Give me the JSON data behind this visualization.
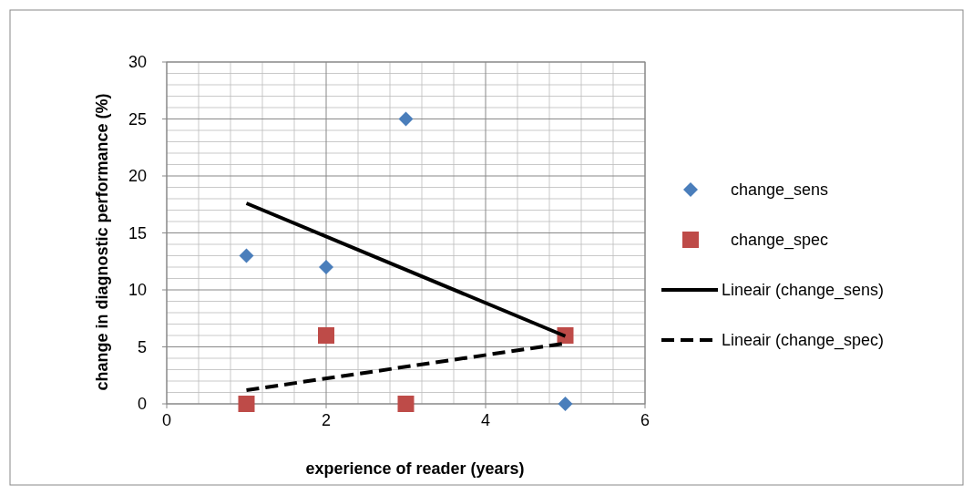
{
  "chart_data": {
    "type": "scatter",
    "xlabel": "experience of reader  (years)",
    "ylabel": "change in diagnostic performance (%)",
    "xlim": [
      0,
      6
    ],
    "xticks": [
      0,
      2,
      4,
      6
    ],
    "ylim": [
      0,
      30
    ],
    "yticks": [
      0,
      5,
      10,
      15,
      20,
      25,
      30
    ],
    "grid": true,
    "legend": "right",
    "series": [
      {
        "name": "change_sens",
        "color": "#4a7ebb",
        "marker": "diamond",
        "x": [
          1,
          2,
          3,
          5
        ],
        "values": [
          13,
          12,
          25,
          0
        ]
      },
      {
        "name": "change_spec",
        "color": "#be4b48",
        "marker": "square",
        "x": [
          1,
          2,
          3,
          5
        ],
        "values": [
          0,
          6,
          0,
          6
        ]
      },
      {
        "name": "Lineair (change_sens)",
        "type": "line",
        "color": "#000000",
        "line_style": "solid",
        "x": [
          1,
          5
        ],
        "values": [
          17.6,
          5.94
        ]
      },
      {
        "name": "Lineair (change_spec)",
        "type": "line",
        "color": "#000000",
        "line_style": "dashed",
        "x": [
          1,
          5
        ],
        "values": [
          1.2,
          5.31
        ]
      }
    ]
  }
}
